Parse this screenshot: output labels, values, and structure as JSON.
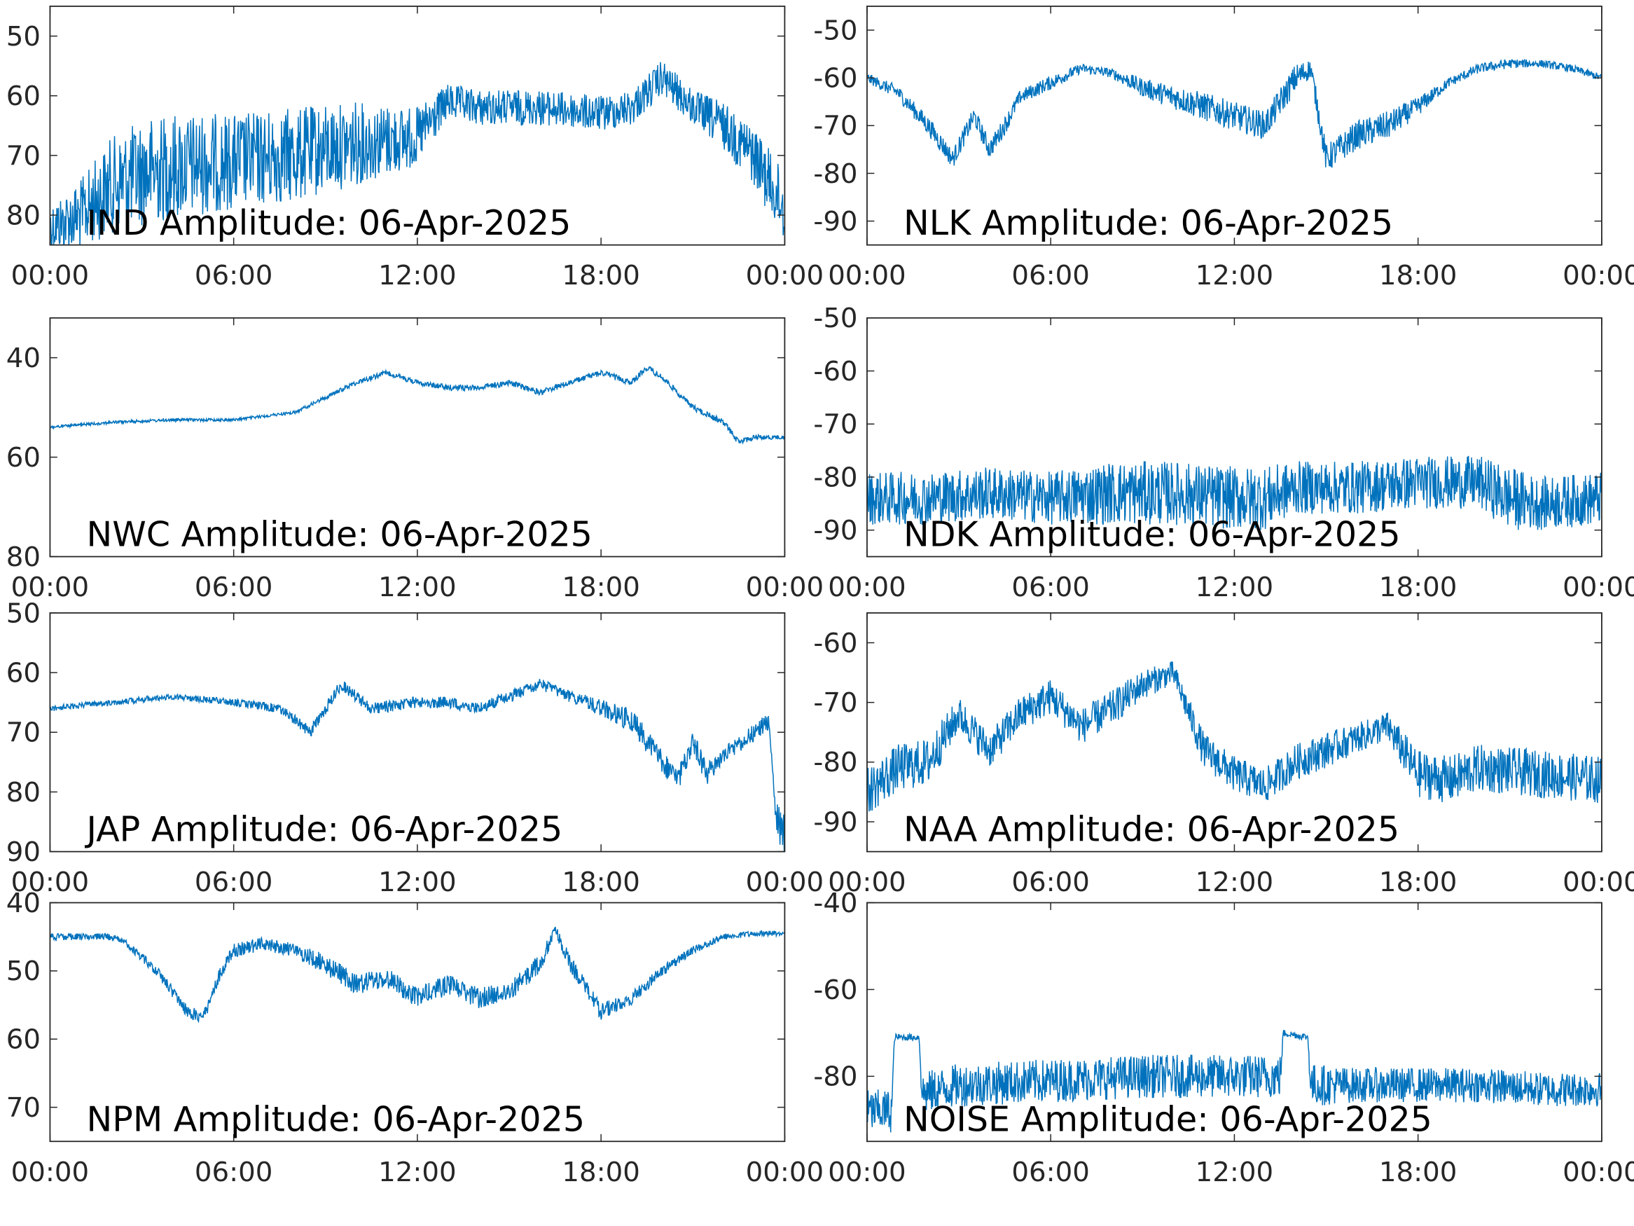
{
  "figure": {
    "line_color": "#0072BD",
    "axes_color": "#262626",
    "background": "#ffffff"
  },
  "chart_data": [
    {
      "type": "line",
      "title": "IND Amplitude: 06-Apr-2025",
      "xlabel": "",
      "ylabel": "",
      "x_ticks": [
        "00:00",
        "06:00",
        "12:00",
        "18:00",
        "00:00"
      ],
      "xlim_hours": [
        0,
        24
      ],
      "y_ticks": [
        50,
        60,
        70,
        80
      ],
      "y_tick_labels": [
        "50",
        "60",
        "70",
        "80"
      ],
      "ylim": [
        45,
        85
      ],
      "y_reversed": true,
      "grid": false,
      "series": [
        {
          "hours": [
            0,
            1,
            2,
            3,
            4,
            6,
            8,
            10,
            12,
            13,
            14,
            16,
            18,
            19,
            20,
            21,
            22,
            23,
            24
          ],
          "values": [
            82,
            80,
            75,
            73,
            72,
            71,
            70,
            68,
            67,
            61,
            62,
            62,
            63,
            62,
            57,
            62,
            65,
            70,
            79
          ],
          "noise": [
            4,
            6,
            8,
            9,
            9,
            8,
            8,
            7,
            5,
            3,
            3,
            3,
            3,
            3,
            3,
            3,
            4,
            5,
            6
          ]
        }
      ]
    },
    {
      "type": "line",
      "title": "NLK Amplitude: 06-Apr-2025",
      "xlabel": "",
      "ylabel": "",
      "x_ticks": [
        "00:00",
        "06:00",
        "12:00",
        "18:00",
        "00:00"
      ],
      "xlim_hours": [
        0,
        24
      ],
      "y_ticks": [
        -50,
        -60,
        -70,
        -80,
        -90
      ],
      "y_tick_labels": [
        "-50",
        "-60",
        "-70",
        "-80",
        "-90"
      ],
      "ylim": [
        -45,
        -95
      ],
      "y_reversed": false,
      "grid": false,
      "series": [
        {
          "hours": [
            0,
            1,
            2,
            2.8,
            3.5,
            4,
            4.5,
            5,
            6,
            7,
            8,
            9,
            10,
            11,
            12,
            13,
            14,
            14.5,
            15,
            16,
            17,
            18,
            19,
            20,
            21,
            22,
            23,
            24
          ],
          "values": [
            -60,
            -63,
            -70,
            -77,
            -68,
            -75,
            -70,
            -64,
            -61,
            -58,
            -59,
            -62,
            -64,
            -66,
            -68,
            -70,
            -60,
            -58,
            -77,
            -72,
            -70,
            -66,
            -61,
            -58,
            -57,
            -57,
            -58,
            -60
          ],
          "noise": [
            1,
            1.5,
            2,
            2,
            2,
            2,
            2,
            1.5,
            1.5,
            1,
            1,
            2,
            2.5,
            3,
            3,
            3,
            3,
            2,
            3,
            3,
            3,
            2,
            1,
            1,
            1,
            0.8,
            0.8,
            0.8
          ]
        }
      ]
    },
    {
      "type": "line",
      "title": "NWC Amplitude: 06-Apr-2025",
      "xlabel": "",
      "ylabel": "",
      "x_ticks": [
        "00:00",
        "06:00",
        "12:00",
        "18:00",
        "00:00"
      ],
      "xlim_hours": [
        0,
        24
      ],
      "y_ticks": [
        40,
        60,
        80
      ],
      "y_tick_labels": [
        "40",
        "60",
        "80"
      ],
      "ylim": [
        32,
        80
      ],
      "y_reversed": true,
      "grid": false,
      "series": [
        {
          "hours": [
            0,
            2,
            4,
            6,
            8,
            9,
            10,
            11,
            12,
            13,
            14,
            15,
            16,
            17,
            18,
            19,
            19.5,
            20,
            21,
            22,
            22.5,
            23,
            24
          ],
          "values": [
            54,
            53,
            52.5,
            52.5,
            51,
            48,
            45,
            43,
            45,
            46,
            46,
            45,
            47,
            45,
            43,
            45,
            42,
            44,
            50,
            53,
            57,
            56,
            56
          ],
          "noise": [
            0.3,
            0.3,
            0.3,
            0.3,
            0.3,
            0.4,
            0.5,
            0.5,
            0.5,
            0.6,
            0.6,
            0.6,
            0.6,
            0.6,
            0.6,
            0.6,
            0.6,
            0.6,
            0.6,
            0.6,
            0.6,
            0.5,
            0.4
          ]
        }
      ]
    },
    {
      "type": "line",
      "title": "NDK Amplitude: 06-Apr-2025",
      "xlabel": "",
      "ylabel": "",
      "x_ticks": [
        "00:00",
        "06:00",
        "12:00",
        "18:00",
        "00:00"
      ],
      "xlim_hours": [
        0,
        24
      ],
      "y_ticks": [
        -50,
        -60,
        -70,
        -80,
        -90
      ],
      "y_tick_labels": [
        "-50",
        "-60",
        "-70",
        "-80",
        "-90"
      ],
      "ylim": [
        -50,
        -95
      ],
      "y_reversed": false,
      "grid": false,
      "series": [
        {
          "hours": [
            0,
            2,
            4,
            6,
            8,
            10,
            12,
            13,
            14,
            16,
            18,
            20,
            21,
            22,
            24
          ],
          "values": [
            -84,
            -84,
            -83,
            -84,
            -83,
            -83,
            -84,
            -84,
            -82,
            -82,
            -81,
            -81,
            -84,
            -85,
            -84
          ],
          "noise": [
            5,
            5,
            5,
            5,
            6,
            6,
            6,
            6,
            5,
            5,
            5,
            5,
            6,
            5,
            5
          ]
        }
      ]
    },
    {
      "type": "line",
      "title": "JAP Amplitude: 06-Apr-2025",
      "xlabel": "",
      "ylabel": "",
      "x_ticks": [
        "00:00",
        "06:00",
        "12:00",
        "18:00",
        "00:00"
      ],
      "xlim_hours": [
        0,
        24
      ],
      "y_ticks": [
        50,
        60,
        70,
        80,
        90
      ],
      "y_tick_labels": [
        "50",
        "60",
        "70",
        "80",
        "90"
      ],
      "ylim": [
        50,
        90
      ],
      "y_reversed": true,
      "grid": false,
      "series": [
        {
          "hours": [
            0,
            2,
            4,
            6,
            7.5,
            8.5,
            9.5,
            10.5,
            12,
            13,
            14,
            16,
            17,
            18,
            19,
            20,
            20.5,
            21,
            21.5,
            22,
            23,
            23.5,
            23.7,
            24
          ],
          "values": [
            66,
            65,
            64,
            65,
            66,
            70,
            62,
            66,
            65,
            65,
            66,
            62,
            64,
            66,
            68,
            75,
            78,
            72,
            77,
            74,
            70,
            68,
            85,
            88
          ],
          "noise": [
            0.5,
            0.5,
            0.5,
            0.6,
            0.8,
            1,
            1,
            1,
            1,
            1,
            1,
            1,
            1,
            1.5,
            2,
            2,
            2,
            2,
            2,
            1.5,
            1.5,
            1.5,
            4,
            4
          ]
        }
      ]
    },
    {
      "type": "line",
      "title": "NAA Amplitude: 06-Apr-2025",
      "xlabel": "",
      "ylabel": "",
      "x_ticks": [
        "00:00",
        "06:00",
        "12:00",
        "18:00",
        "00:00"
      ],
      "xlim_hours": [
        0,
        24
      ],
      "y_ticks": [
        -60,
        -70,
        -80,
        -90
      ],
      "y_tick_labels": [
        "-60",
        "-70",
        "-80",
        "-90"
      ],
      "ylim": [
        -55,
        -95
      ],
      "y_reversed": false,
      "grid": false,
      "series": [
        {
          "hours": [
            0,
            1,
            2,
            3,
            4,
            5,
            6,
            7,
            8,
            9,
            10,
            11,
            12,
            13,
            14,
            15,
            16,
            17,
            18,
            19,
            20,
            22,
            24
          ],
          "values": [
            -85,
            -81,
            -80,
            -72,
            -78,
            -72,
            -69,
            -74,
            -71,
            -67,
            -65,
            -78,
            -82,
            -84,
            -80,
            -78,
            -76,
            -74,
            -82,
            -83,
            -81,
            -82,
            -83
          ],
          "noise": [
            4,
            4,
            4,
            3,
            3,
            3,
            3,
            3,
            3,
            2.5,
            2,
            3,
            3,
            3,
            3,
            3,
            2.5,
            2.5,
            4,
            4,
            4,
            4,
            4
          ]
        }
      ]
    },
    {
      "type": "line",
      "title": "NPM Amplitude: 06-Apr-2025",
      "xlabel": "",
      "ylabel": "",
      "x_ticks": [
        "00:00",
        "06:00",
        "12:00",
        "18:00",
        "00:00"
      ],
      "xlim_hours": [
        0,
        24
      ],
      "y_ticks": [
        40,
        50,
        60,
        70
      ],
      "y_tick_labels": [
        "40",
        "50",
        "60",
        "70"
      ],
      "ylim": [
        40,
        75
      ],
      "y_reversed": true,
      "grid": false,
      "series": [
        {
          "hours": [
            0,
            2,
            2.5,
            3.5,
            4.5,
            5,
            5.5,
            6,
            7,
            8,
            9,
            10,
            11,
            12,
            13,
            14,
            15,
            16,
            16.5,
            17,
            18,
            19,
            20,
            21,
            22,
            23,
            24
          ],
          "values": [
            45,
            45,
            46,
            50,
            56,
            57,
            51,
            47,
            46,
            47,
            49,
            52,
            51,
            54,
            52,
            54,
            53,
            49,
            44,
            49,
            56,
            54,
            50,
            47,
            45,
            44.5,
            44.5
          ],
          "noise": [
            0.5,
            0.5,
            0.5,
            0.8,
            1,
            1,
            1,
            1,
            1,
            1,
            1.5,
            1.5,
            1.5,
            1.5,
            1.5,
            1.5,
            1.5,
            1.5,
            1,
            1.2,
            1.2,
            1,
            0.8,
            0.6,
            0.5,
            0.4,
            0.4
          ]
        }
      ]
    },
    {
      "type": "line",
      "title": "NOISE Amplitude: 06-Apr-2025",
      "xlabel": "",
      "ylabel": "",
      "x_ticks": [
        "00:00",
        "06:00",
        "12:00",
        "18:00",
        "00:00"
      ],
      "xlim_hours": [
        0,
        24
      ],
      "y_ticks": [
        -40,
        -60,
        -80
      ],
      "y_tick_labels": [
        "-40",
        "-60",
        "-80"
      ],
      "ylim": [
        -40,
        -95
      ],
      "y_reversed": false,
      "grid": false,
      "series": [
        {
          "hours": [
            0,
            0.8,
            0.9,
            1.7,
            1.8,
            3,
            6,
            9,
            12,
            13.5,
            13.6,
            14.4,
            14.5,
            16,
            18,
            20,
            22,
            24
          ],
          "values": [
            -88,
            -88,
            -71,
            -71,
            -84,
            -82,
            -81,
            -80,
            -80,
            -80,
            -70,
            -71,
            -82,
            -82,
            -82,
            -82,
            -83,
            -83
          ],
          "noise": [
            5,
            5,
            0.8,
            0.8,
            5,
            5,
            5,
            5,
            5,
            5,
            0.8,
            0.8,
            5,
            4,
            4,
            4,
            4,
            4
          ]
        }
      ]
    }
  ]
}
